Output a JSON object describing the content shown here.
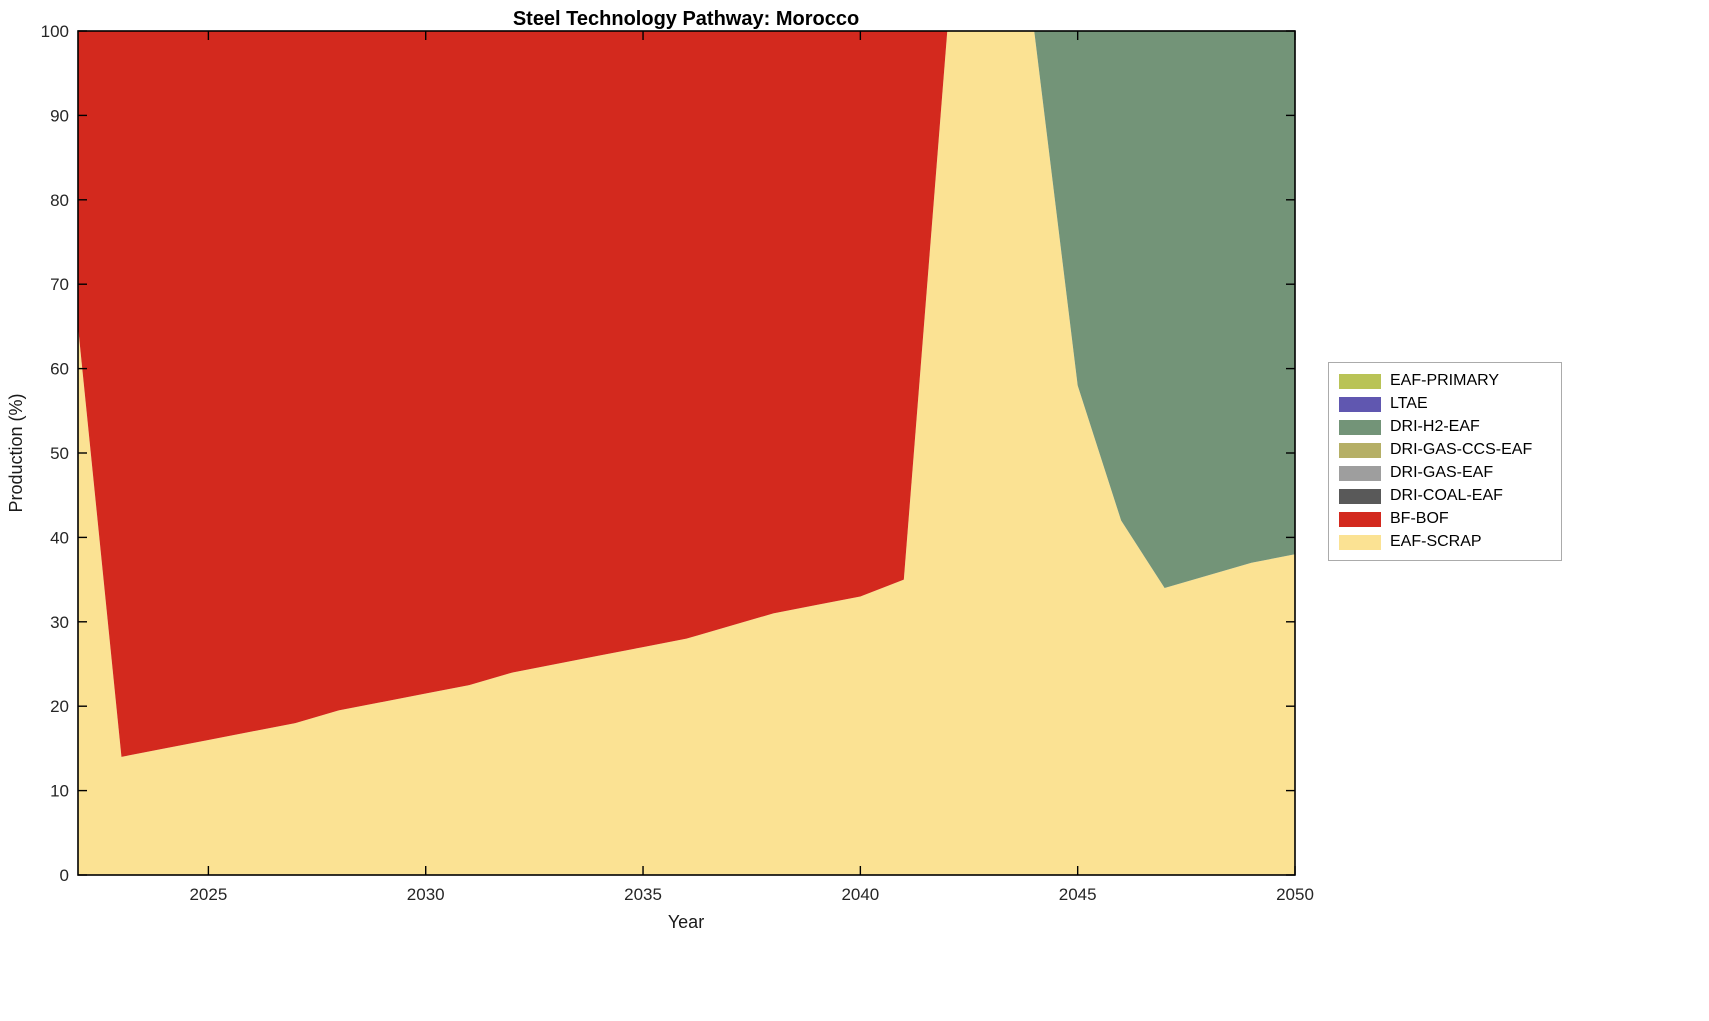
{
  "chart_data": {
    "type": "area",
    "stacked": true,
    "title": "Steel Technology Pathway: Morocco",
    "xlabel": "Year",
    "ylabel": "Production (%)",
    "xlim": [
      2022,
      2050
    ],
    "ylim": [
      0,
      100
    ],
    "xticks": [
      2025,
      2030,
      2035,
      2040,
      2045,
      2050
    ],
    "yticks": [
      0,
      10,
      20,
      30,
      40,
      50,
      60,
      70,
      80,
      90,
      100
    ],
    "grid": false,
    "legend_position": "right-outside",
    "x": [
      2022,
      2023,
      2024,
      2025,
      2026,
      2027,
      2028,
      2029,
      2030,
      2031,
      2032,
      2033,
      2034,
      2035,
      2036,
      2037,
      2038,
      2039,
      2040,
      2041,
      2042,
      2043,
      2044,
      2045,
      2046,
      2047,
      2048,
      2049,
      2050
    ],
    "series": [
      {
        "name": "EAF-SCRAP",
        "color": "#fbe293",
        "values": [
          65,
          14,
          15,
          16,
          17,
          18,
          19.5,
          20.5,
          21.5,
          22.5,
          24,
          25,
          26,
          27,
          28,
          29.5,
          31,
          32,
          33,
          35,
          100,
          100,
          100,
          58,
          42,
          34,
          35.5,
          37,
          38
        ]
      },
      {
        "name": "BF-BOF",
        "color": "#d3291e",
        "values": [
          35,
          86,
          85,
          84,
          83,
          82,
          80.5,
          79.5,
          78.5,
          77.5,
          76,
          75,
          74,
          73,
          72,
          70.5,
          69,
          68,
          67,
          65,
          0,
          0,
          0,
          0,
          0,
          0,
          0,
          0,
          0
        ]
      },
      {
        "name": "DRI-COAL-EAF",
        "color": "#595959",
        "values": [
          0,
          0,
          0,
          0,
          0,
          0,
          0,
          0,
          0,
          0,
          0,
          0,
          0,
          0,
          0,
          0,
          0,
          0,
          0,
          0,
          0,
          0,
          0,
          0,
          0,
          0,
          0,
          0,
          0
        ]
      },
      {
        "name": "DRI-GAS-EAF",
        "color": "#9e9e9e",
        "values": [
          0,
          0,
          0,
          0,
          0,
          0,
          0,
          0,
          0,
          0,
          0,
          0,
          0,
          0,
          0,
          0,
          0,
          0,
          0,
          0,
          0,
          0,
          0,
          0,
          0,
          0,
          0,
          0,
          0
        ]
      },
      {
        "name": "DRI-GAS-CCS-EAF",
        "color": "#b5af66",
        "values": [
          0,
          0,
          0,
          0,
          0,
          0,
          0,
          0,
          0,
          0,
          0,
          0,
          0,
          0,
          0,
          0,
          0,
          0,
          0,
          0,
          0,
          0,
          0,
          0,
          0,
          0,
          0,
          0,
          0
        ]
      },
      {
        "name": "DRI-H2-EAF",
        "color": "#739478",
        "values": [
          0,
          0,
          0,
          0,
          0,
          0,
          0,
          0,
          0,
          0,
          0,
          0,
          0,
          0,
          0,
          0,
          0,
          0,
          0,
          0,
          0,
          0,
          0,
          42,
          58,
          66,
          64.5,
          63,
          62
        ]
      },
      {
        "name": "LTAE",
        "color": "#6057b0",
        "values": [
          0,
          0,
          0,
          0,
          0,
          0,
          0,
          0,
          0,
          0,
          0,
          0,
          0,
          0,
          0,
          0,
          0,
          0,
          0,
          0,
          0,
          0,
          0,
          0,
          0,
          0,
          0,
          0,
          0
        ]
      },
      {
        "name": "EAF-PRIMARY",
        "color": "#b9c356",
        "values": [
          0,
          0,
          0,
          0,
          0,
          0,
          0,
          0,
          0,
          0,
          0,
          0,
          0,
          0,
          0,
          0,
          0,
          0,
          0,
          0,
          0,
          0,
          0,
          0,
          0,
          0,
          0,
          0,
          0
        ]
      }
    ]
  }
}
